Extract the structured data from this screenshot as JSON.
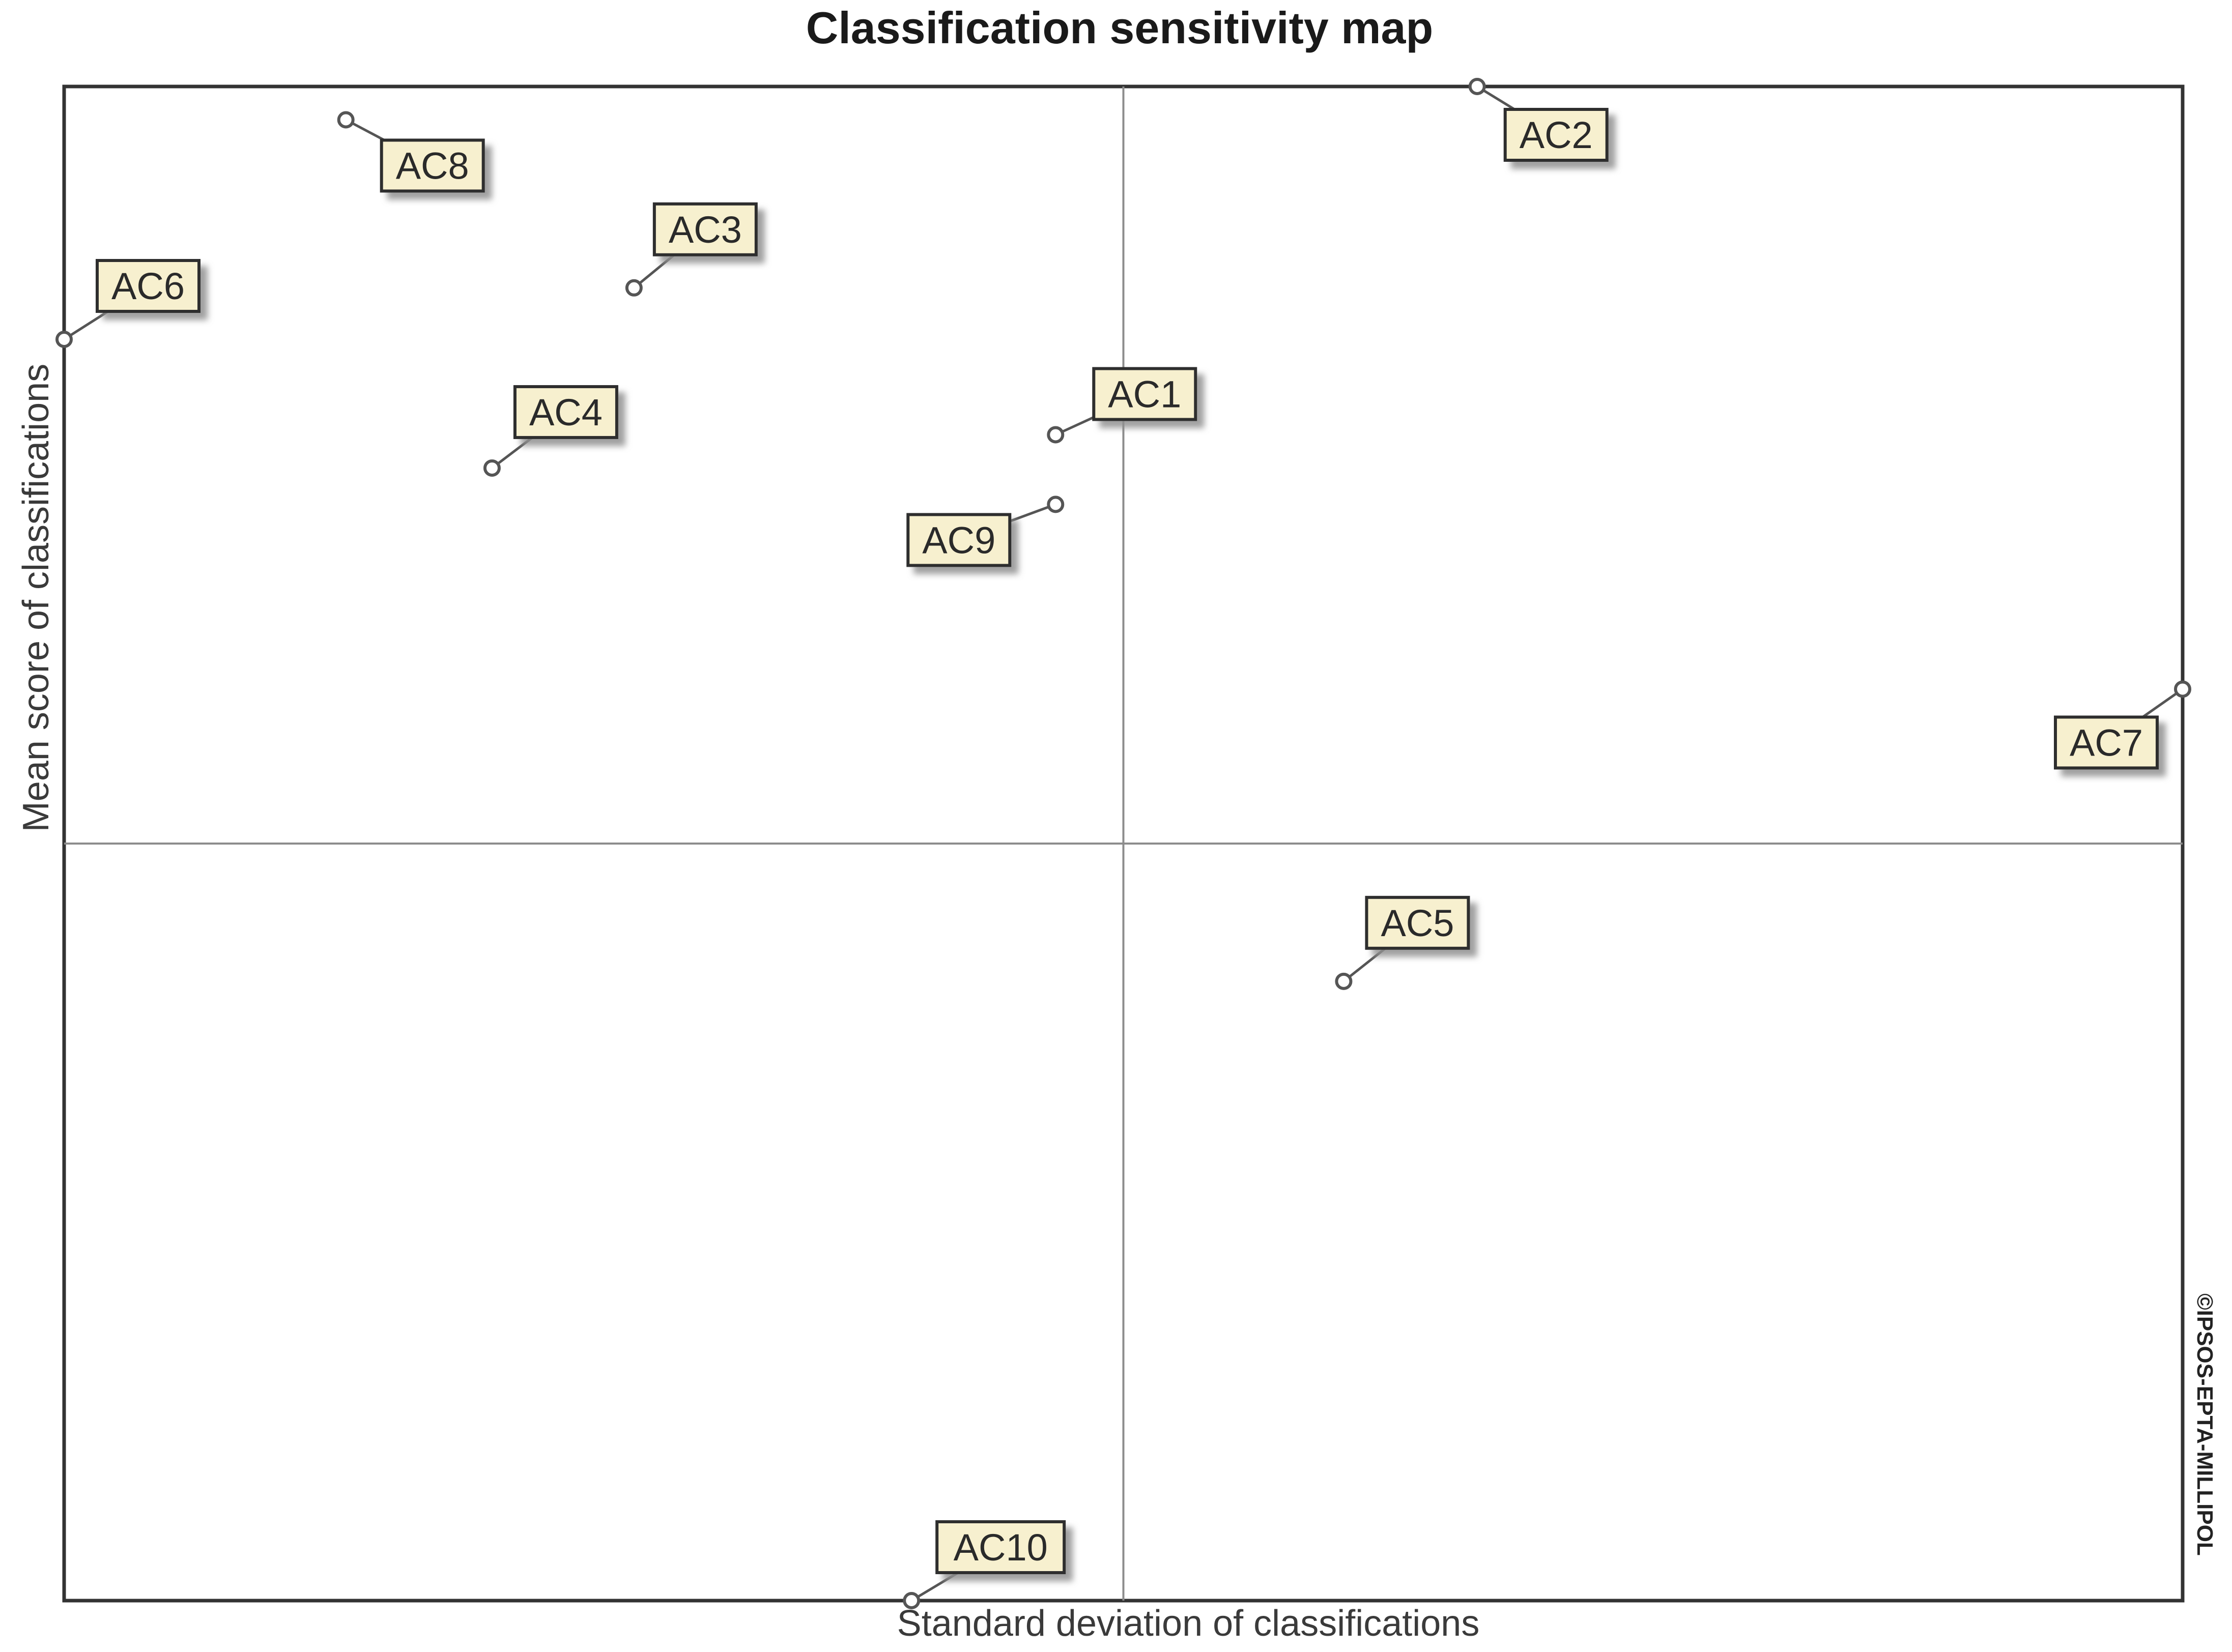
{
  "chart_data": {
    "type": "scatter",
    "title": "Classification sensitivity map",
    "xlabel": "Standard deviation of classifications",
    "ylabel": "Mean score of classifications",
    "side_note": "©IPSOS-EPTA-MILLIPOL",
    "xlim": [
      0,
      1
    ],
    "ylim": [
      0,
      1
    ],
    "grid": false,
    "quadrant_lines": {
      "x": 0.5,
      "y": 0.5
    },
    "colors": {
      "frame": "#333333",
      "quadrant_line": "#8c8c8c",
      "label_fill": "#f7f0cf",
      "label_border": "#2e2e2e",
      "label_shadow": "#9a9a9a",
      "marker": "#555555"
    },
    "points": [
      {
        "label": "AC1",
        "x": 0.468,
        "y": 0.77
      },
      {
        "label": "AC2",
        "x": 0.667,
        "y": 1.0
      },
      {
        "label": "AC3",
        "x": 0.269,
        "y": 0.867
      },
      {
        "label": "AC4",
        "x": 0.202,
        "y": 0.748
      },
      {
        "label": "AC5",
        "x": 0.604,
        "y": 0.409
      },
      {
        "label": "AC6",
        "x": 0.0,
        "y": 0.833
      },
      {
        "label": "AC7",
        "x": 1.0,
        "y": 0.602
      },
      {
        "label": "AC8",
        "x": 0.133,
        "y": 0.978
      },
      {
        "label": "AC9",
        "x": 0.468,
        "y": 0.724
      },
      {
        "label": "AC10",
        "x": 0.4,
        "y": 0.0
      }
    ]
  }
}
